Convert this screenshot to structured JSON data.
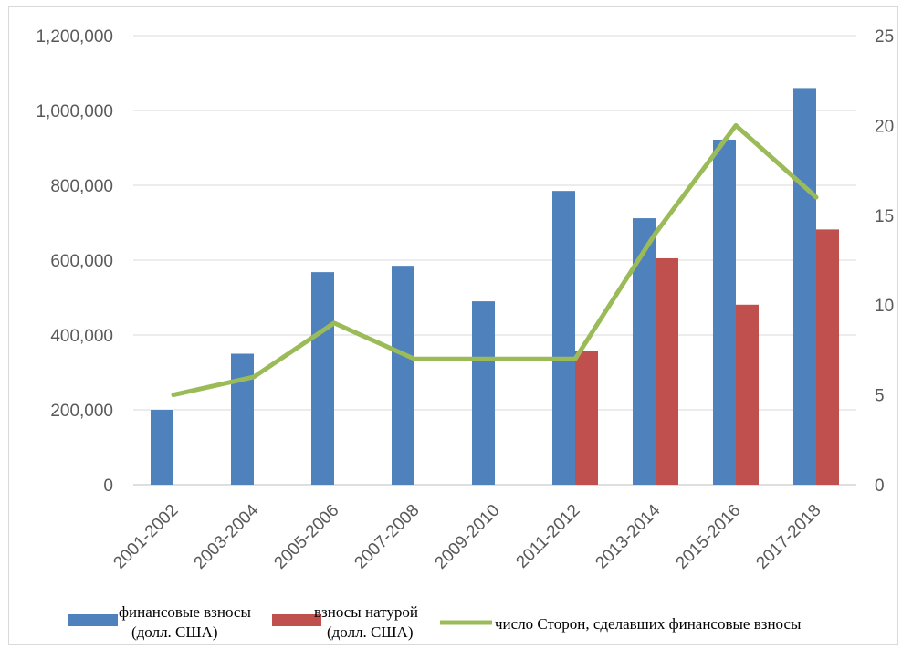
{
  "chart_data": {
    "type": "bar+line",
    "categories": [
      "2001-2002",
      "2003-2004",
      "2005-2006",
      "2007-2008",
      "2009-2010",
      "2011-2012",
      "2013-2014",
      "2015-2016",
      "2017-2018"
    ],
    "series": [
      {
        "name": "финансовые взносы (долл. США)",
        "name_lines": [
          "финансовые взносы",
          "(долл. США)"
        ],
        "kind": "bar",
        "axis": "left",
        "color": "#4f81bd",
        "values": [
          200000,
          350000,
          568000,
          585000,
          490000,
          785000,
          712000,
          922000,
          1060000
        ]
      },
      {
        "name": "взносы натурой (долл. США)",
        "name_lines": [
          "взносы натурой",
          "(долл. США)"
        ],
        "kind": "bar",
        "axis": "left",
        "color": "#c0504d",
        "values": [
          0,
          0,
          0,
          0,
          0,
          357000,
          605000,
          481000,
          682000
        ]
      },
      {
        "name": "число Сторон, сделавших финансовые взносы",
        "name_lines": [
          "число Сторон, сделавших финансовые взносы"
        ],
        "kind": "line",
        "axis": "right",
        "color": "#9bbb59",
        "values": [
          5,
          6,
          9,
          7,
          7,
          7,
          14,
          20,
          16
        ]
      }
    ],
    "y_left": {
      "min": 0,
      "max": 1200000,
      "ticks": [
        "0",
        "200,000",
        "400,000",
        "600,000",
        "800,000",
        "1,000,000",
        "1,200,000"
      ]
    },
    "y_right": {
      "min": 0,
      "max": 25,
      "ticks": [
        "0",
        "5",
        "10",
        "15",
        "20",
        "25"
      ]
    },
    "grid": true,
    "legend_position": "bottom"
  }
}
